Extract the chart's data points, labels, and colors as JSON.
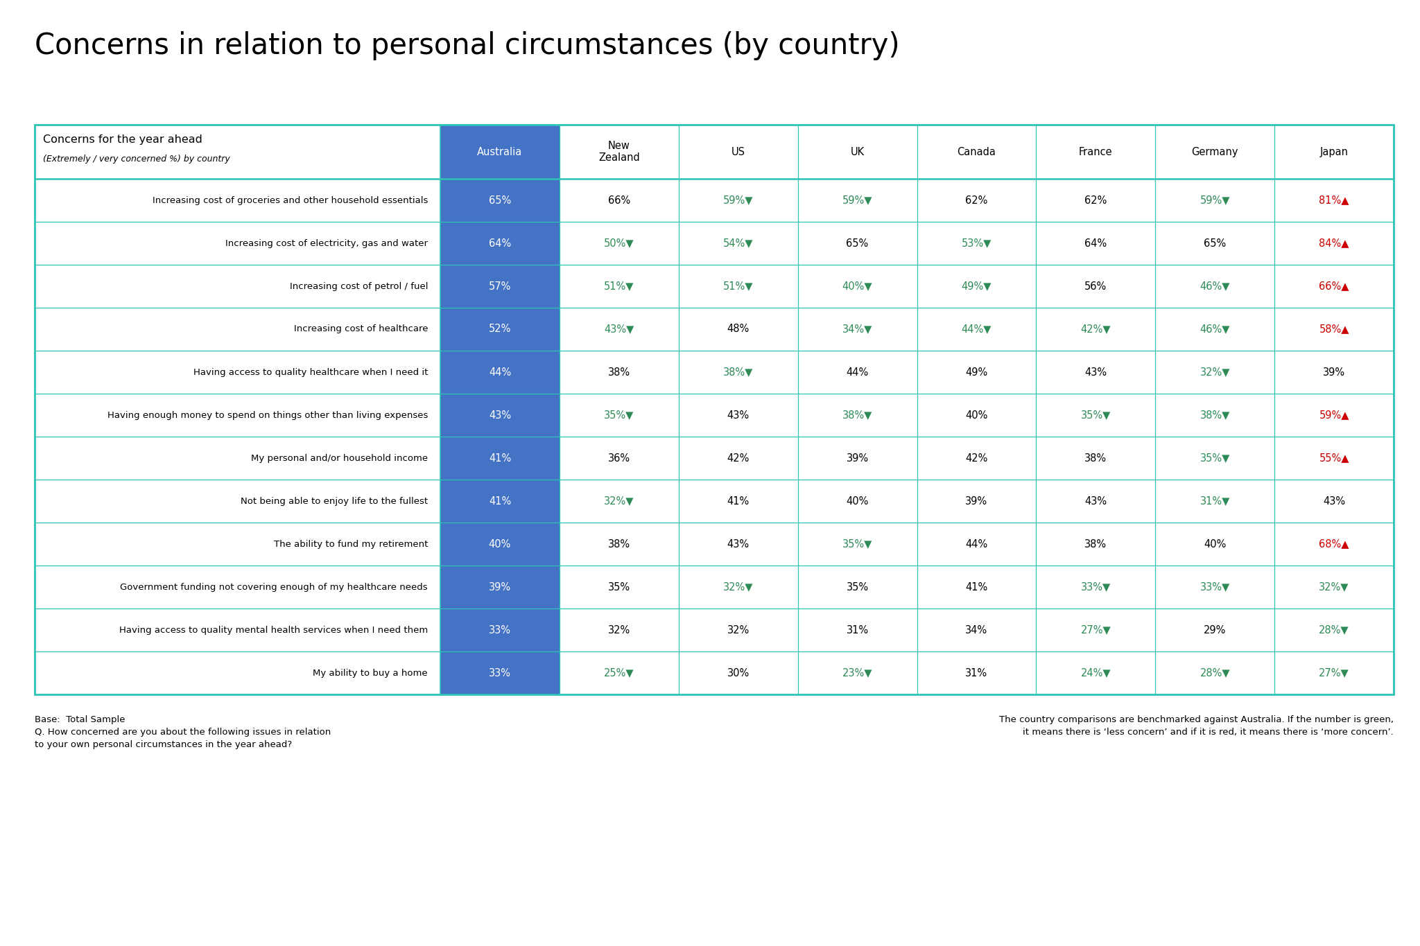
{
  "title": "Concerns in relation to personal circumstances (by country)",
  "header_label": "Concerns for the year ahead",
  "header_sublabel": "(Extremely / very concerned %) by country",
  "columns": [
    "Australia",
    "New\nZealand",
    "US",
    "UK",
    "Canada",
    "France",
    "Germany",
    "Japan"
  ],
  "rows": [
    {
      "label": "Increasing cost of groceries and other household essentials",
      "values": [
        "65%",
        "66%",
        "59%▼",
        "59%▼",
        "62%",
        "62%",
        "59%▼",
        "81%▲"
      ],
      "colors": [
        "white",
        "black",
        "green",
        "green",
        "black",
        "black",
        "green",
        "red"
      ]
    },
    {
      "label": "Increasing cost of electricity, gas and water",
      "values": [
        "64%",
        "50%▼",
        "54%▼",
        "65%",
        "53%▼",
        "64%",
        "65%",
        "84%▲"
      ],
      "colors": [
        "white",
        "green",
        "green",
        "black",
        "green",
        "black",
        "black",
        "red"
      ]
    },
    {
      "label": "Increasing cost of petrol / fuel",
      "values": [
        "57%",
        "51%▼",
        "51%▼",
        "40%▼",
        "49%▼",
        "56%",
        "46%▼",
        "66%▲"
      ],
      "colors": [
        "white",
        "green",
        "green",
        "green",
        "green",
        "black",
        "green",
        "red"
      ]
    },
    {
      "label": "Increasing cost of healthcare",
      "values": [
        "52%",
        "43%▼",
        "48%",
        "34%▼",
        "44%▼",
        "42%▼",
        "46%▼",
        "58%▲"
      ],
      "colors": [
        "white",
        "green",
        "black",
        "green",
        "green",
        "green",
        "green",
        "red"
      ]
    },
    {
      "label": "Having access to quality healthcare when I need it",
      "values": [
        "44%",
        "38%",
        "38%▼",
        "44%",
        "49%",
        "43%",
        "32%▼",
        "39%"
      ],
      "colors": [
        "white",
        "black",
        "green",
        "black",
        "black",
        "black",
        "green",
        "black"
      ]
    },
    {
      "label": "Having enough money to spend on things other than living expenses",
      "values": [
        "43%",
        "35%▼",
        "43%",
        "38%▼",
        "40%",
        "35%▼",
        "38%▼",
        "59%▲"
      ],
      "colors": [
        "white",
        "green",
        "black",
        "green",
        "black",
        "green",
        "green",
        "red"
      ]
    },
    {
      "label": "My personal and/or household income",
      "values": [
        "41%",
        "36%",
        "42%",
        "39%",
        "42%",
        "38%",
        "35%▼",
        "55%▲"
      ],
      "colors": [
        "white",
        "black",
        "black",
        "black",
        "black",
        "black",
        "green",
        "red"
      ]
    },
    {
      "label": "Not being able to enjoy life to the fullest",
      "values": [
        "41%",
        "32%▼",
        "41%",
        "40%",
        "39%",
        "43%",
        "31%▼",
        "43%"
      ],
      "colors": [
        "white",
        "green",
        "black",
        "black",
        "black",
        "black",
        "green",
        "black"
      ]
    },
    {
      "label": "The ability to fund my retirement",
      "values": [
        "40%",
        "38%",
        "43%",
        "35%▼",
        "44%",
        "38%",
        "40%",
        "68%▲"
      ],
      "colors": [
        "white",
        "black",
        "black",
        "green",
        "black",
        "black",
        "black",
        "red"
      ]
    },
    {
      "label": "Government funding not covering enough of my healthcare needs",
      "values": [
        "39%",
        "35%",
        "32%▼",
        "35%",
        "41%",
        "33%▼",
        "33%▼",
        "32%▼"
      ],
      "colors": [
        "white",
        "black",
        "green",
        "black",
        "black",
        "green",
        "green",
        "green"
      ]
    },
    {
      "label": "Having access to quality mental health services when I need them",
      "values": [
        "33%",
        "32%",
        "32%",
        "31%",
        "34%",
        "27%▼",
        "29%",
        "28%▼"
      ],
      "colors": [
        "white",
        "black",
        "black",
        "black",
        "black",
        "green",
        "black",
        "green"
      ]
    },
    {
      "label": "My ability to buy a home",
      "values": [
        "33%",
        "25%▼",
        "30%",
        "23%▼",
        "31%",
        "24%▼",
        "28%▼",
        "27%▼"
      ],
      "colors": [
        "white",
        "green",
        "black",
        "green",
        "black",
        "green",
        "green",
        "green"
      ]
    }
  ],
  "footnote_left": "Base:  Total Sample\nQ. How concerned are you about the following issues in relation\nto your own personal circumstances in the year ahead?",
  "footnote_right": "The country comparisons are benchmarked against Australia. If the number is green,\nit means there is ‘less concern’ and if it is red, it means there is ‘more concern’.",
  "australia_col_color": "#4472C4",
  "header_row_color": "#4472C4",
  "border_color": "#2EC4B6",
  "background_color": "#FFFFFF",
  "green_color": "#2E8B57",
  "red_color": "#CC0000"
}
